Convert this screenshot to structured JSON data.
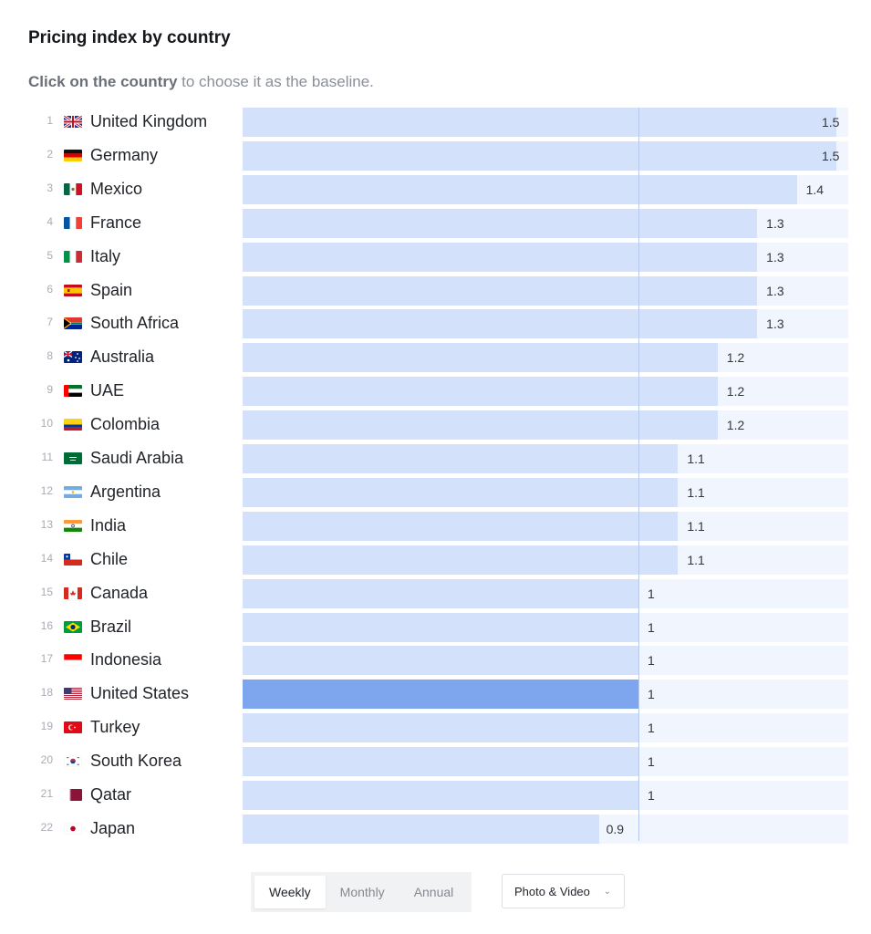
{
  "chart_data": {
    "type": "bar",
    "title": "Pricing index by country",
    "subtitle_bold": "Click on the country",
    "subtitle_rest": " to choose it as the baseline.",
    "baseline": "United States",
    "reference_value": 1,
    "xlim": [
      0,
      1.53
    ],
    "categories": [
      "United Kingdom",
      "Germany",
      "Mexico",
      "France",
      "Italy",
      "Spain",
      "South Africa",
      "Australia",
      "UAE",
      "Colombia",
      "Saudi Arabia",
      "Argentina",
      "India",
      "Chile",
      "Canada",
      "Brazil",
      "Indonesia",
      "United States",
      "Turkey",
      "South Korea",
      "Qatar",
      "Japan"
    ],
    "values": [
      1.5,
      1.5,
      1.4,
      1.3,
      1.3,
      1.3,
      1.3,
      1.2,
      1.2,
      1.2,
      1.1,
      1.1,
      1.1,
      1.1,
      1,
      1,
      1,
      1,
      1,
      1,
      1,
      0.9
    ],
    "labels": [
      "1.5",
      "1.5",
      "1.4",
      "1.3",
      "1.3",
      "1.3",
      "1.3",
      "1.2",
      "1.2",
      "1.2",
      "1.1",
      "1.1",
      "1.1",
      "1.1",
      "1",
      "1",
      "1",
      "1",
      "1",
      "1",
      "1",
      "0.9"
    ],
    "ranks": [
      "1",
      "2",
      "3",
      "4",
      "5",
      "6",
      "7",
      "8",
      "9",
      "10",
      "11",
      "12",
      "13",
      "14",
      "15",
      "16",
      "17",
      "18",
      "19",
      "20",
      "21",
      "22"
    ],
    "flags": [
      "gb-flag",
      "de-flag",
      "mx-flag",
      "fr-flag",
      "it-flag",
      "es-flag",
      "za-flag",
      "au-flag",
      "ae-flag",
      "co-flag",
      "sa-flag",
      "ar-flag",
      "in-flag",
      "cl-flag",
      "ca-flag",
      "br-flag",
      "id-flag",
      "us-flag",
      "tr-flag",
      "kr-flag",
      "qa-flag",
      "jp-flag"
    ]
  },
  "colors": {
    "bar": "#d4e1fa",
    "bar_baseline": "#7da6ee",
    "track": "#f1f5fe",
    "refline": "#b7c9ee"
  },
  "controls": {
    "periods": [
      "Weekly",
      "Monthly",
      "Annual"
    ],
    "active_period": "Weekly",
    "category_select": "Photo & Video",
    "category_icon": "chevron-down-icon"
  }
}
